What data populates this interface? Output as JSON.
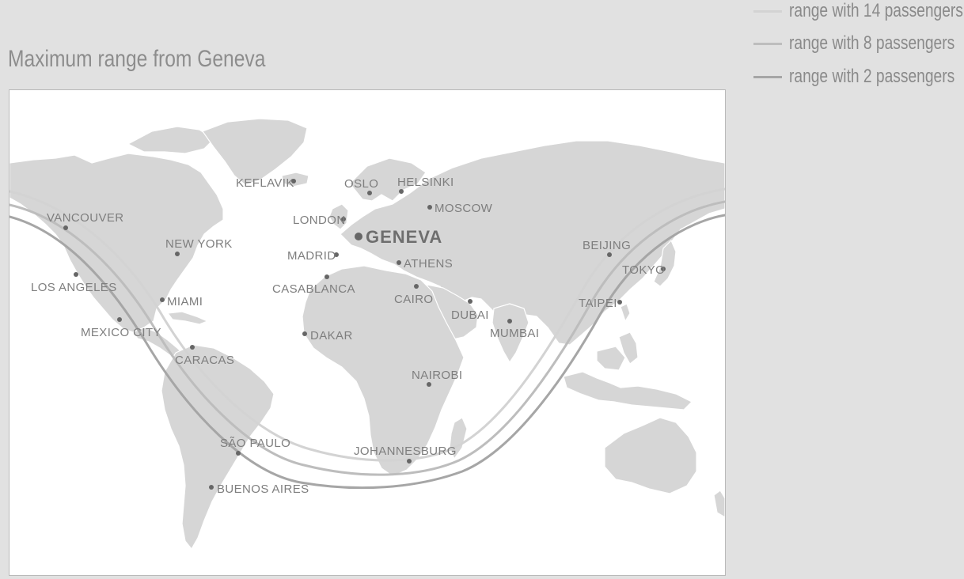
{
  "title": "Maximum range from Geneva",
  "legend": [
    {
      "label": "range with 14 passengers",
      "color": "#d3d3d3"
    },
    {
      "label": "range with 8 passengers",
      "color": "#bdbdbd"
    },
    {
      "label": "range with 2 passengers",
      "color": "#a6a6a6"
    }
  ],
  "home_city": "GENEVA",
  "cities": [
    {
      "id": "keflavik",
      "name": "KEFLAVIK"
    },
    {
      "id": "oslo",
      "name": "OSLO"
    },
    {
      "id": "helsinki",
      "name": "HELSINKI"
    },
    {
      "id": "moscow",
      "name": "MOSCOW"
    },
    {
      "id": "london",
      "name": "LONDON"
    },
    {
      "id": "geneva",
      "name": "GENEVA"
    },
    {
      "id": "madrid",
      "name": "MADRID"
    },
    {
      "id": "athens",
      "name": "ATHENS"
    },
    {
      "id": "casablanca",
      "name": "CASABLANCA"
    },
    {
      "id": "cairo",
      "name": "CAIRO"
    },
    {
      "id": "dubai",
      "name": "DUBAI"
    },
    {
      "id": "mumbai",
      "name": "MUMBAI"
    },
    {
      "id": "dakar",
      "name": "DAKAR"
    },
    {
      "id": "nairobi",
      "name": "NAIROBI"
    },
    {
      "id": "johannesburg",
      "name": "JOHANNESBURG"
    },
    {
      "id": "vancouver",
      "name": "VANCOUVER"
    },
    {
      "id": "new-york",
      "name": "NEW YORK"
    },
    {
      "id": "los-angeles",
      "name": "LOS ANGELES"
    },
    {
      "id": "miami",
      "name": "MIAMI"
    },
    {
      "id": "mexico-city",
      "name": "MEXICO CITY"
    },
    {
      "id": "caracas",
      "name": "CARACAS"
    },
    {
      "id": "sao-paulo",
      "name": "SÃO PAULO"
    },
    {
      "id": "buenos-aires",
      "name": "BUENOS AIRES"
    },
    {
      "id": "beijing",
      "name": "BEIJING"
    },
    {
      "id": "tokyo",
      "name": "TOKYO"
    },
    {
      "id": "taipei",
      "name": "TAIPEI"
    }
  ]
}
